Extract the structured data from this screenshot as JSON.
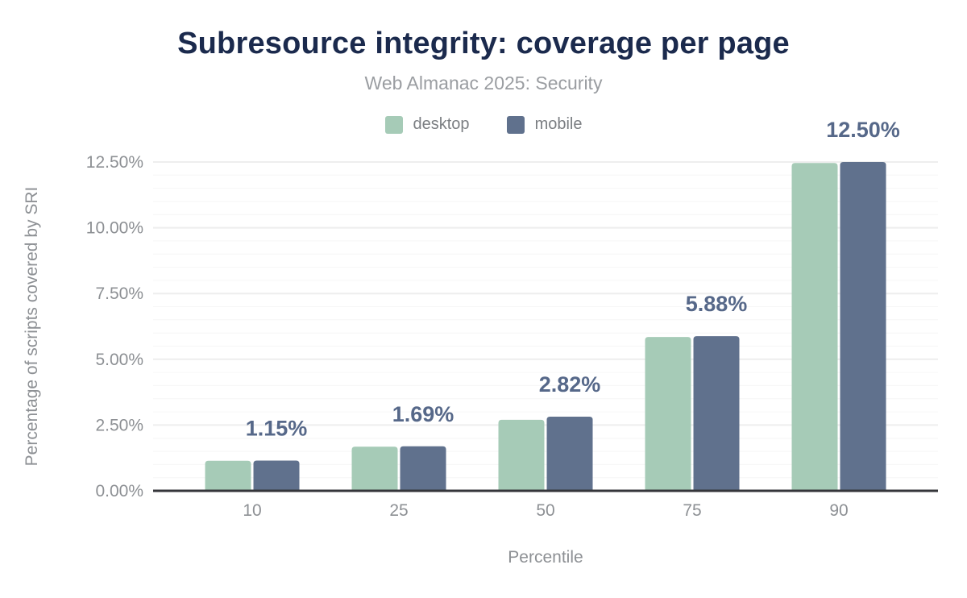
{
  "header": {
    "title": "Subresource integrity: coverage per page",
    "subtitle": "Web Almanac 2025: Security"
  },
  "colors": {
    "title": "#1b2a4d",
    "subtitle_gray": "#9a9da1",
    "tick_gray": "#8d9094",
    "legend_gray": "#7b7e82",
    "value_label": "#566889",
    "desktop": "#a6cbb7",
    "mobile": "#60718d",
    "axis_line": "#35363a",
    "grid_major": "#eeeeee",
    "grid_minor": "#f6f6f6",
    "background": "#ffffff"
  },
  "chart_data": {
    "type": "bar",
    "title": "Subresource integrity: coverage per page",
    "subtitle": "Web Almanac 2025: Security",
    "categories": [
      "10",
      "25",
      "50",
      "75",
      "90"
    ],
    "series": [
      {
        "name": "desktop",
        "color": "#a6cbb7",
        "values": [
          1.14,
          1.68,
          2.7,
          5.85,
          12.46
        ]
      },
      {
        "name": "mobile",
        "color": "#60718d",
        "values": [
          1.15,
          1.69,
          2.82,
          5.88,
          12.5
        ]
      }
    ],
    "value_labels": {
      "text": [
        "1.15%",
        "1.69%",
        "2.82%",
        "5.88%",
        "12.50%"
      ],
      "labeled_series": "mobile",
      "color": "#566889"
    },
    "xlabel": "Percentile",
    "ylabel": "Percentage of scripts covered by SRI",
    "ylim": [
      0,
      12.5
    ],
    "yticks": [
      0,
      2.5,
      5,
      7.5,
      10,
      12.5
    ],
    "ytick_labels": [
      "0.00%",
      "2.50%",
      "5.00%",
      "7.50%",
      "10.00%",
      "12.50%"
    ],
    "grid": {
      "orientation": "horizontal",
      "major_step": 2.5,
      "minor_step": 0.5
    },
    "legend_position": "top"
  }
}
